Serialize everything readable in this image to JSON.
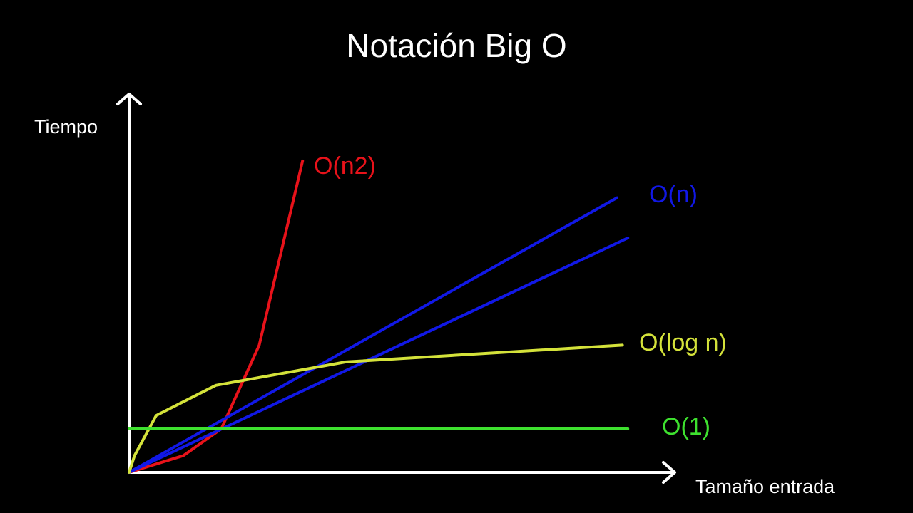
{
  "chart_data": {
    "type": "line",
    "title": "Notación Big O",
    "xlabel": "Tamaño entrada",
    "ylabel": "Tiempo",
    "xlim": [
      0,
      100
    ],
    "ylim": [
      0,
      100
    ],
    "grid": false,
    "series": [
      {
        "name": "O(n2)",
        "color": "#e8121a",
        "x": [
          0,
          10,
          17,
          24,
          32
        ],
        "y": [
          0,
          5,
          13,
          38,
          93
        ]
      },
      {
        "name": "O(n)",
        "color": "#1118e6",
        "x": [
          0,
          90
        ],
        "y": [
          0,
          82
        ],
        "curves": [
          {
            "x": [
              0,
              90
            ],
            "y": [
              0,
              82
            ]
          },
          {
            "x": [
              0,
              92
            ],
            "y": [
              0,
              70
            ]
          }
        ]
      },
      {
        "name": "O(log n)",
        "color": "#d4e23a",
        "x": [
          0,
          1,
          5,
          16,
          40,
          91
        ],
        "y": [
          0,
          5,
          17,
          26,
          33,
          38
        ]
      },
      {
        "name": "O(1)",
        "color": "#3ee12f",
        "x": [
          0,
          92
        ],
        "y": [
          13,
          13
        ]
      }
    ]
  }
}
